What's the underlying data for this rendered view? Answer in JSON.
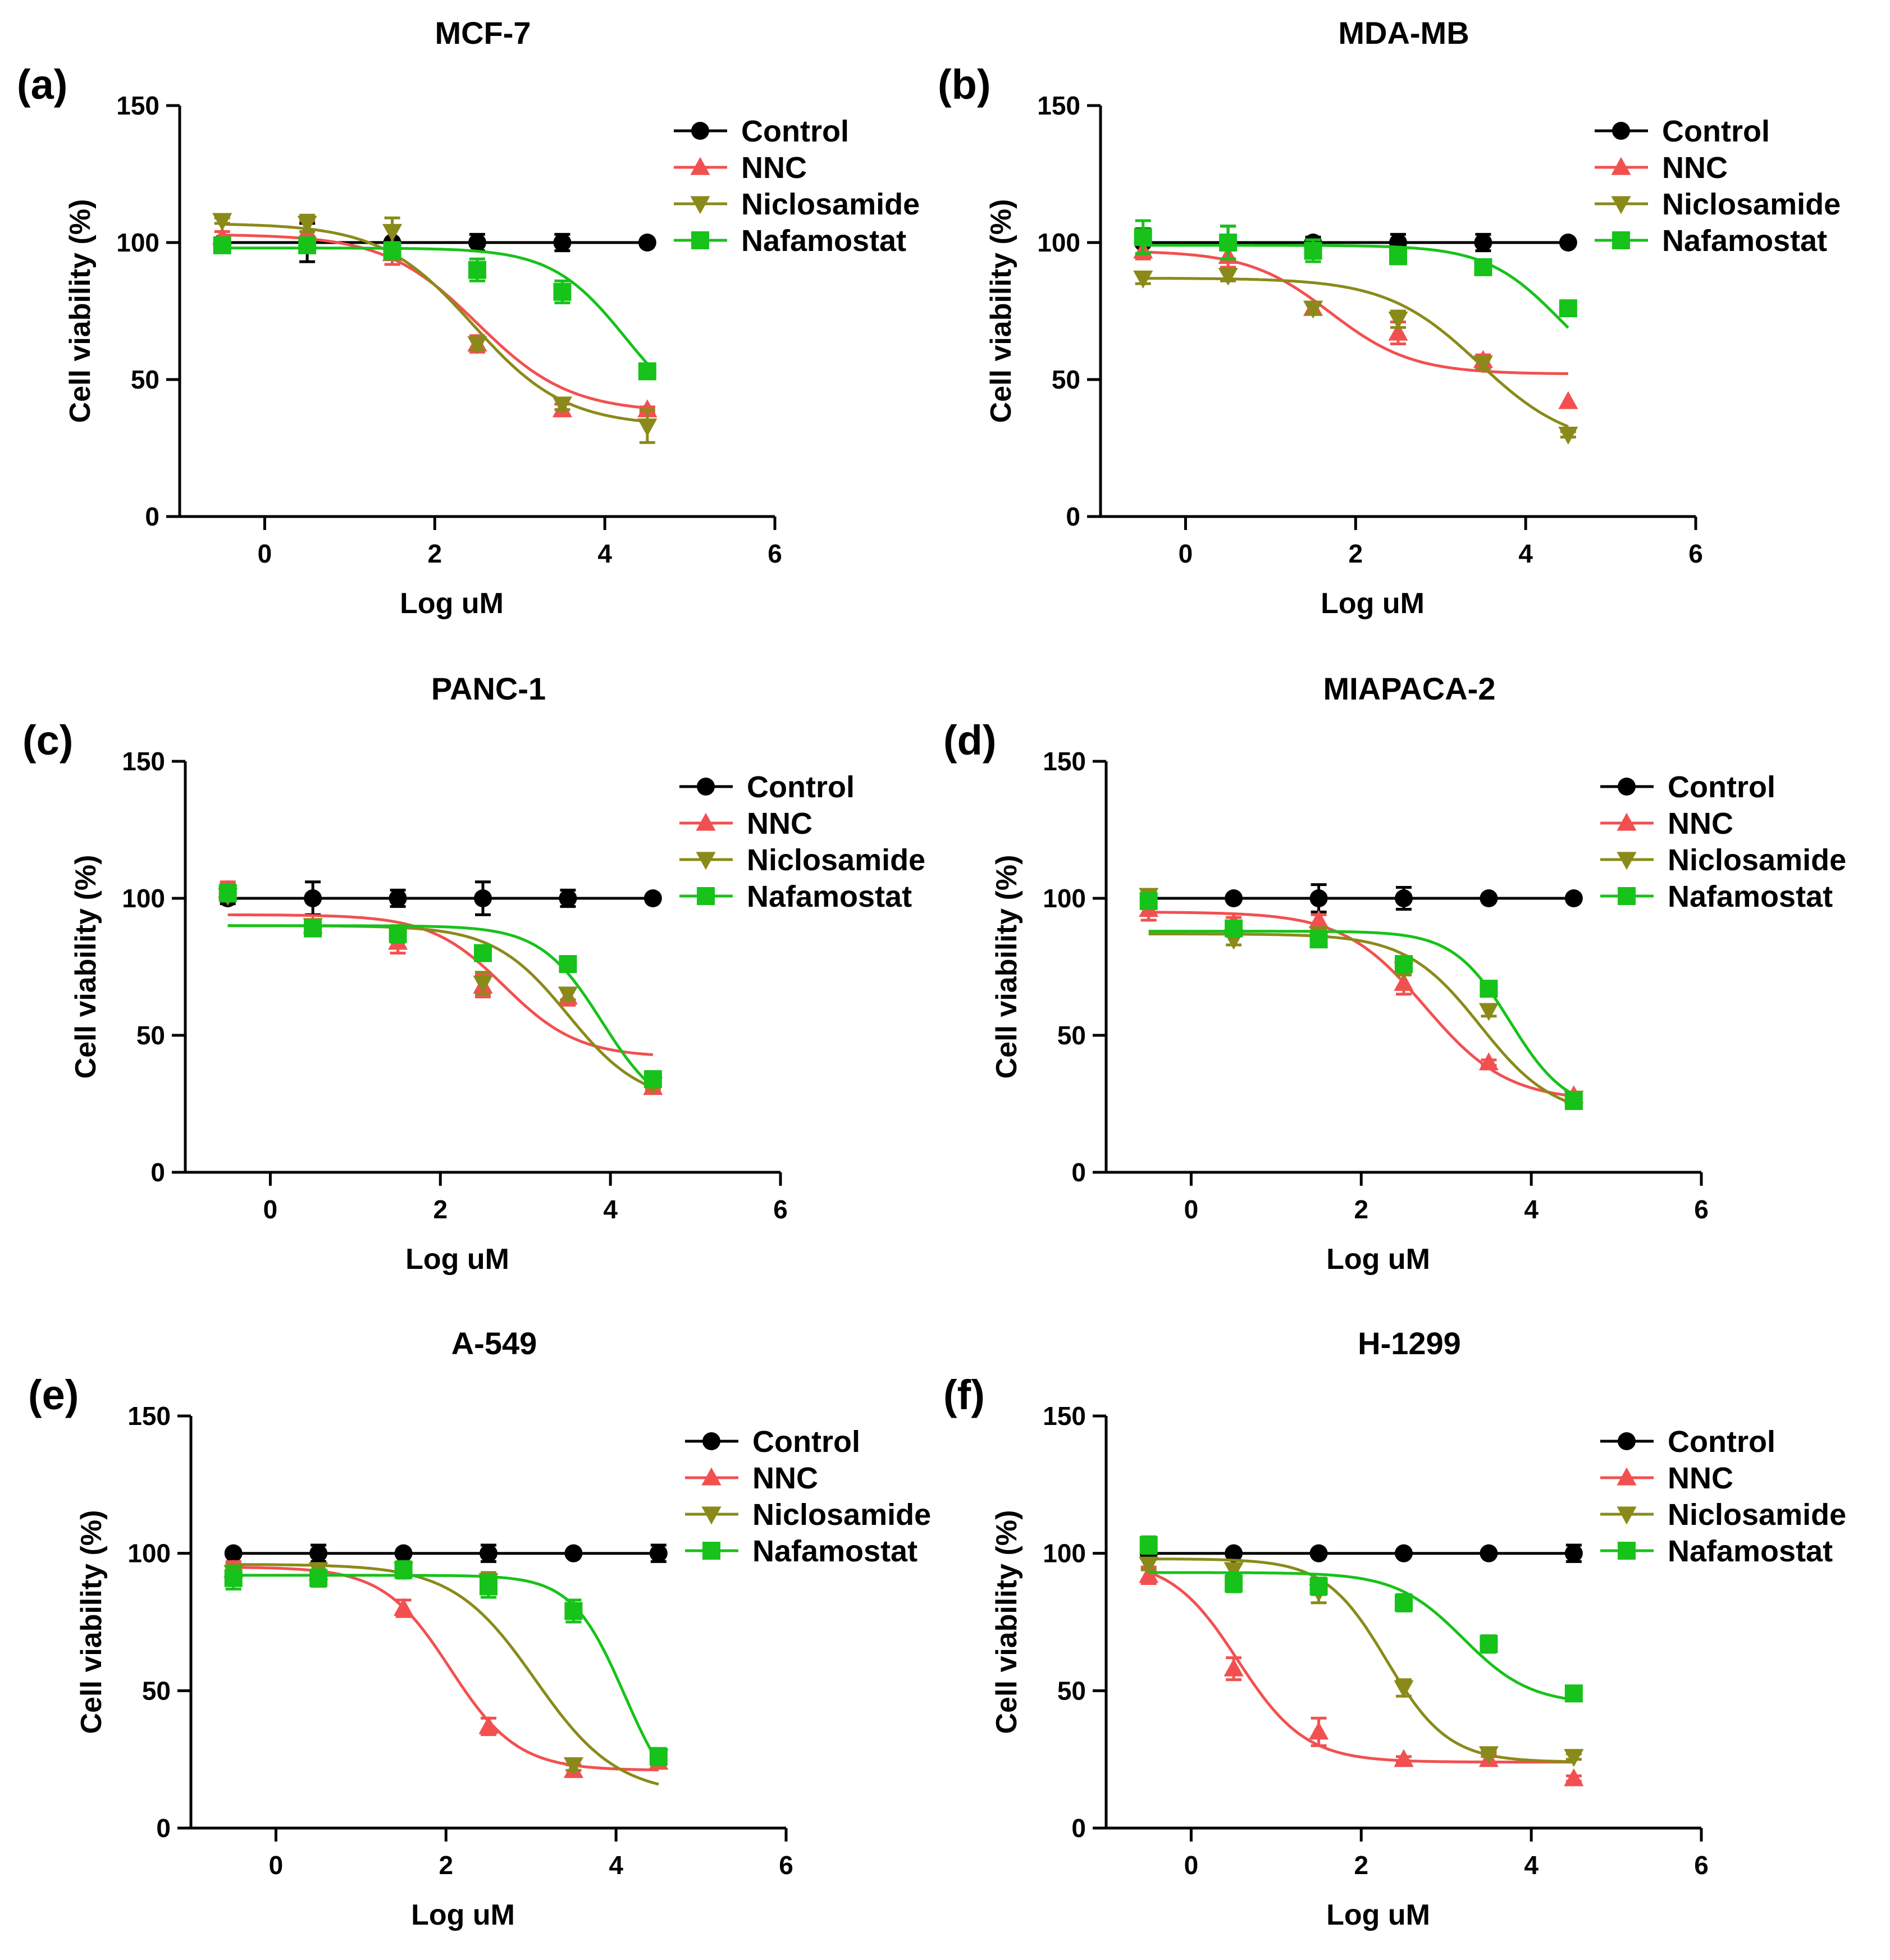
{
  "colors": {
    "Control": "#000000",
    "NNC": "#f25050",
    "Niclosamide": "#8a8a1a",
    "Nafamostat": "#17c21a"
  },
  "chart_data": [
    {
      "type": "line",
      "letter": "(a)",
      "title": "MCF-7",
      "xlabel": "Log uM",
      "ylabel": "Cell viability (%)",
      "xlim": [
        -1,
        6
      ],
      "ylim": [
        0,
        150
      ],
      "xticks": [
        "0",
        "2",
        "4",
        "6"
      ],
      "yticks": [
        "0",
        "50",
        "100",
        "150"
      ],
      "legend": "top-right",
      "series": [
        {
          "name": "Control",
          "marker": "circle",
          "x": [
            -0.5,
            0.5,
            1.5,
            2.5,
            3.5,
            4.5
          ],
          "y": [
            100,
            100,
            100,
            100,
            100,
            100
          ],
          "err": [
            1,
            7,
            6,
            3,
            3,
            0
          ],
          "fit": {
            "bottom": 100,
            "top": 100,
            "logec50": 3,
            "hill": -1
          }
        },
        {
          "name": "NNC",
          "marker": "triangle-up",
          "x": [
            -0.5,
            0.5,
            1.5,
            2.5,
            3.5,
            4.5
          ],
          "y": [
            102,
            104,
            96,
            63,
            39,
            39
          ],
          "err": [
            2,
            4,
            4,
            3,
            2,
            1
          ],
          "fit": {
            "bottom": 38,
            "top": 103,
            "logec50": 2.5,
            "hill": -0.8
          }
        },
        {
          "name": "Niclosamide",
          "marker": "triangle-down",
          "x": [
            -0.5,
            0.5,
            1.5,
            2.5,
            3.5,
            4.5
          ],
          "y": [
            108,
            107,
            104,
            63,
            41,
            33
          ],
          "err": [
            1,
            3,
            5,
            2,
            2,
            6
          ],
          "fit": {
            "bottom": 33,
            "top": 107,
            "logec50": 2.45,
            "hill": -0.8
          }
        },
        {
          "name": "Nafamostat",
          "marker": "square",
          "x": [
            -0.5,
            0.5,
            1.5,
            2.5,
            3.5,
            4.5
          ],
          "y": [
            99,
            99,
            97,
            90,
            82,
            53
          ],
          "err": [
            1,
            2,
            3,
            4,
            4,
            1
          ],
          "fit": {
            "bottom": 32,
            "top": 98,
            "logec50": 4.25,
            "hill": -1
          }
        }
      ]
    },
    {
      "type": "line",
      "letter": "(b)",
      "title": "MDA-MB",
      "xlabel": "Log uM",
      "ylabel": "Cell viability (%)",
      "xlim": [
        -1,
        6
      ],
      "ylim": [
        0,
        150
      ],
      "xticks": [
        "0",
        "2",
        "4",
        "6"
      ],
      "yticks": [
        "0",
        "50",
        "100",
        "150"
      ],
      "legend": "top-right",
      "series": [
        {
          "name": "Control",
          "marker": "circle",
          "x": [
            -0.5,
            0.5,
            1.5,
            2.5,
            3.5,
            4.5
          ],
          "y": [
            100,
            100,
            100,
            100,
            100,
            100
          ],
          "err": [
            5,
            6,
            2,
            3,
            3,
            0
          ],
          "fit": {
            "bottom": 100,
            "top": 100,
            "logec50": 3,
            "hill": -1
          }
        },
        {
          "name": "NNC",
          "marker": "triangle-up",
          "x": [
            -0.5,
            0.5,
            1.5,
            2.5,
            3.5,
            4.5
          ],
          "y": [
            97,
            95,
            76,
            67,
            57,
            42
          ],
          "err": [
            3,
            4,
            2,
            4,
            2,
            0
          ],
          "fit": {
            "bottom": 52,
            "top": 97,
            "logec50": 1.7,
            "hill": -0.9
          }
        },
        {
          "name": "Niclosamide",
          "marker": "triangle-down",
          "x": [
            -0.5,
            0.5,
            1.5,
            2.5,
            3.5,
            4.5
          ],
          "y": [
            87,
            88,
            76,
            72,
            56,
            30
          ],
          "err": [
            2,
            2,
            2,
            3,
            2,
            1
          ],
          "fit": {
            "bottom": 25,
            "top": 87,
            "logec50": 3.45,
            "hill": -0.8
          }
        },
        {
          "name": "Nafamostat",
          "marker": "square",
          "x": [
            -0.5,
            0.5,
            1.5,
            2.5,
            3.5,
            4.5
          ],
          "y": [
            102,
            100,
            97,
            95,
            91,
            76
          ],
          "err": [
            6,
            6,
            4,
            2,
            2,
            1
          ],
          "fit": {
            "bottom": 45,
            "top": 99,
            "logec50": 4.4,
            "hill": -1
          }
        }
      ]
    },
    {
      "type": "line",
      "letter": "(c)",
      "title": "PANC-1",
      "xlabel": "Log uM",
      "ylabel": "Cell viability (%)",
      "xlim": [
        -1,
        6
      ],
      "ylim": [
        0,
        150
      ],
      "xticks": [
        "0",
        "2",
        "4",
        "6"
      ],
      "yticks": [
        "0",
        "50",
        "100",
        "150"
      ],
      "legend": "top-right",
      "series": [
        {
          "name": "Control",
          "marker": "circle",
          "x": [
            -0.5,
            0.5,
            1.5,
            2.5,
            3.5,
            4.5
          ],
          "y": [
            100,
            100,
            100,
            100,
            100,
            100
          ],
          "err": [
            2,
            6,
            3,
            6,
            3,
            0
          ],
          "fit": {
            "bottom": 100,
            "top": 100,
            "logec50": 3,
            "hill": -1
          }
        },
        {
          "name": "NNC",
          "marker": "triangle-up",
          "x": [
            -0.5,
            0.5,
            1.5,
            2.5,
            3.5,
            4.5
          ],
          "y": [
            103,
            90,
            84,
            68,
            64,
            31
          ],
          "err": [
            3,
            2,
            4,
            4,
            3,
            1
          ],
          "fit": {
            "bottom": 42,
            "top": 94,
            "logec50": 2.75,
            "hill": -1
          }
        },
        {
          "name": "Niclosamide",
          "marker": "triangle-down",
          "x": [
            -0.5,
            0.5,
            1.5,
            2.5,
            3.5,
            4.5
          ],
          "y": [
            101,
            90,
            87,
            69,
            65,
            32
          ],
          "err": [
            2,
            2,
            3,
            4,
            2,
            1
          ],
          "fit": {
            "bottom": 25,
            "top": 90,
            "logec50": 3.5,
            "hill": -1
          }
        },
        {
          "name": "Nafamostat",
          "marker": "square",
          "x": [
            -0.5,
            0.5,
            1.5,
            2.5,
            3.5,
            4.5
          ],
          "y": [
            102,
            89,
            87,
            80,
            76,
            34
          ],
          "err": [
            3,
            2,
            3,
            2,
            2,
            1
          ],
          "fit": {
            "bottom": 20,
            "top": 90,
            "logec50": 3.9,
            "hill": -1.2
          }
        }
      ]
    },
    {
      "type": "line",
      "letter": "(d)",
      "title": "MIAPACA-2",
      "xlabel": "Log uM",
      "ylabel": "Cell viability (%)",
      "xlim": [
        -1,
        6
      ],
      "ylim": [
        0,
        150
      ],
      "xticks": [
        "0",
        "2",
        "4",
        "6"
      ],
      "yticks": [
        "0",
        "50",
        "100",
        "150"
      ],
      "legend": "top-right",
      "series": [
        {
          "name": "Control",
          "marker": "circle",
          "x": [
            -0.5,
            0.5,
            1.5,
            2.5,
            3.5,
            4.5
          ],
          "y": [
            100,
            100,
            100,
            100,
            100,
            100
          ],
          "err": [
            2,
            1,
            5,
            4,
            0,
            0
          ],
          "fit": {
            "bottom": 100,
            "top": 100,
            "logec50": 3,
            "hill": -1
          }
        },
        {
          "name": "NNC",
          "marker": "triangle-up",
          "x": [
            -0.5,
            0.5,
            1.5,
            2.5,
            3.5,
            4.5
          ],
          "y": [
            96,
            91,
            92,
            69,
            40,
            28
          ],
          "err": [
            4,
            2,
            2,
            4,
            1,
            1
          ],
          "fit": {
            "bottom": 26,
            "top": 95,
            "logec50": 2.75,
            "hill": -0.9
          }
        },
        {
          "name": "Niclosamide",
          "marker": "triangle-down",
          "x": [
            -0.5,
            0.5,
            1.5,
            2.5,
            3.5,
            4.5
          ],
          "y": [
            101,
            85,
            87,
            74,
            59,
            27
          ],
          "err": [
            2,
            2,
            2,
            2,
            2,
            1
          ],
          "fit": {
            "bottom": 20,
            "top": 87,
            "logec50": 3.4,
            "hill": -1
          }
        },
        {
          "name": "Nafamostat",
          "marker": "square",
          "x": [
            -0.5,
            0.5,
            1.5,
            2.5,
            3.5,
            4.5
          ],
          "y": [
            99,
            89,
            85,
            76,
            67,
            26
          ],
          "err": [
            2,
            2,
            2,
            2,
            2,
            1
          ],
          "fit": {
            "bottom": 22,
            "top": 88,
            "logec50": 3.75,
            "hill": -1.3
          }
        }
      ]
    },
    {
      "type": "line",
      "letter": "(e)",
      "title": "A-549",
      "xlabel": "Log uM",
      "ylabel": "Cell viability (%)",
      "xlim": [
        -1,
        6
      ],
      "ylim": [
        0,
        150
      ],
      "xticks": [
        "0",
        "2",
        "4",
        "6"
      ],
      "yticks": [
        "0",
        "50",
        "100",
        "150"
      ],
      "legend": "top-right",
      "series": [
        {
          "name": "Control",
          "marker": "circle",
          "x": [
            -0.5,
            0.5,
            1.5,
            2.5,
            3.5,
            4.5
          ],
          "y": [
            100,
            100,
            100,
            100,
            100,
            100
          ],
          "err": [
            1,
            3,
            1,
            3,
            0,
            3
          ],
          "fit": {
            "bottom": 100,
            "top": 100,
            "logec50": 3,
            "hill": -1
          }
        },
        {
          "name": "NNC",
          "marker": "triangle-up",
          "x": [
            -0.5,
            0.5,
            1.5,
            2.5,
            3.5,
            4.5
          ],
          "y": [
            94,
            93,
            80,
            37,
            21,
            24
          ],
          "err": [
            3,
            3,
            3,
            3,
            2,
            2
          ],
          "fit": {
            "bottom": 21,
            "top": 95,
            "logec50": 2.05,
            "hill": -1.1
          }
        },
        {
          "name": "Niclosamide",
          "marker": "triangle-down",
          "x": [
            -0.5,
            0.5,
            1.5,
            2.5,
            3.5,
            4.5
          ],
          "y": [
            93,
            94,
            94,
            90,
            23,
            26
          ],
          "err": [
            3,
            2,
            2,
            3,
            2,
            2
          ],
          "fit": {
            "bottom": 12,
            "top": 96,
            "logec50": 3.05,
            "hill": -0.9
          }
        },
        {
          "name": "Nafamostat",
          "marker": "square",
          "x": [
            -0.5,
            0.5,
            1.5,
            2.5,
            3.5,
            4.5
          ],
          "y": [
            91,
            91,
            94,
            88,
            79,
            26
          ],
          "err": [
            4,
            3,
            3,
            4,
            4,
            3
          ],
          "fit": {
            "bottom": 5,
            "top": 92,
            "logec50": 4.1,
            "hill": -1.4
          }
        }
      ]
    },
    {
      "type": "line",
      "letter": "(f)",
      "title": "H-1299",
      "xlabel": "Log uM",
      "ylabel": "Cell viability (%)",
      "xlim": [
        -1,
        6
      ],
      "ylim": [
        0,
        150
      ],
      "xticks": [
        "0",
        "2",
        "4",
        "6"
      ],
      "yticks": [
        "0",
        "50",
        "100",
        "150"
      ],
      "legend": "top-right",
      "series": [
        {
          "name": "Control",
          "marker": "circle",
          "x": [
            -0.5,
            0.5,
            1.5,
            2.5,
            3.5,
            4.5
          ],
          "y": [
            100,
            100,
            100,
            100,
            100,
            100
          ],
          "err": [
            1,
            1,
            0,
            0,
            1,
            3
          ],
          "fit": {
            "bottom": 100,
            "top": 100,
            "logec50": 3,
            "hill": -1
          }
        },
        {
          "name": "NNC",
          "marker": "triangle-up",
          "x": [
            -0.5,
            0.5,
            1.5,
            2.5,
            3.5,
            4.5
          ],
          "y": [
            92,
            58,
            35,
            25,
            25,
            18
          ],
          "err": [
            3,
            4,
            5,
            1,
            2,
            1
          ],
          "fit": {
            "bottom": 24,
            "top": 98,
            "logec50": 0.55,
            "hill": -1.1
          }
        },
        {
          "name": "Niclosamide",
          "marker": "triangle-down",
          "x": [
            -0.5,
            0.5,
            1.5,
            2.5,
            3.5,
            4.5
          ],
          "y": [
            96,
            94,
            86,
            51,
            27,
            26
          ],
          "err": [
            2,
            2,
            4,
            3,
            1,
            1
          ],
          "fit": {
            "bottom": 24,
            "top": 98,
            "logec50": 2.3,
            "hill": -1.2
          }
        },
        {
          "name": "Nafamostat",
          "marker": "square",
          "x": [
            -0.5,
            0.5,
            1.5,
            2.5,
            3.5,
            4.5
          ],
          "y": [
            103,
            89,
            88,
            82,
            67,
            49
          ],
          "err": [
            3,
            3,
            3,
            3,
            3,
            1
          ],
          "fit": {
            "bottom": 45,
            "top": 93,
            "logec50": 3.2,
            "hill": -1.1
          }
        }
      ]
    }
  ]
}
